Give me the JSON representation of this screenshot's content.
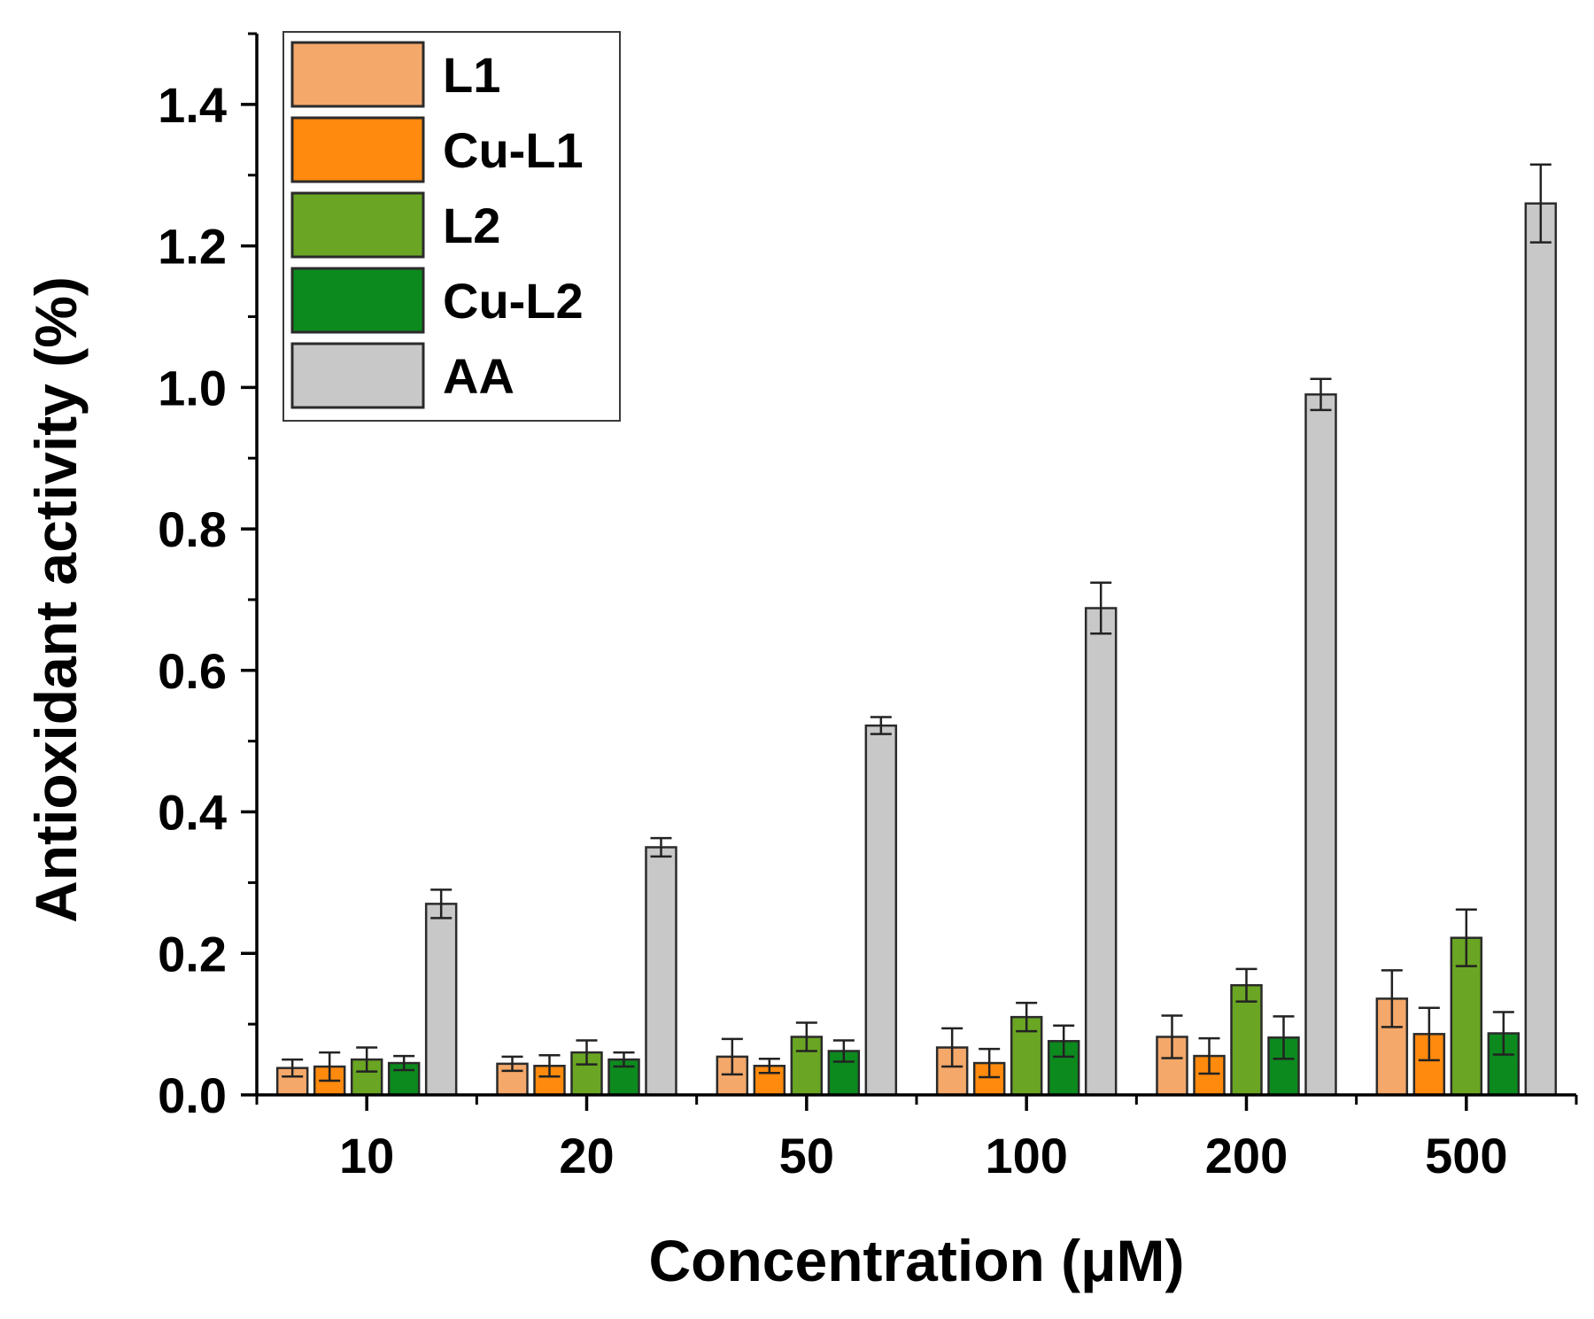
{
  "chart_data": {
    "type": "bar",
    "title": "",
    "xlabel": "Concentration (μM)",
    "ylabel": "Antioxidant activity (%)",
    "ylim": [
      0.0,
      1.5
    ],
    "yticks": [
      0.0,
      0.2,
      0.4,
      0.6,
      0.8,
      1.0,
      1.2,
      1.4
    ],
    "ytick_labels": [
      "0.0",
      "0.2",
      "0.4",
      "0.6",
      "0.8",
      "1.0",
      "1.2",
      "1.4"
    ],
    "categories": [
      "10",
      "20",
      "50",
      "100",
      "200",
      "500"
    ],
    "grid": false,
    "legend_position": "top-left",
    "error_bars": true,
    "series": [
      {
        "name": "L1",
        "color": "#F4A86A",
        "values": [
          0.038,
          0.044,
          0.054,
          0.067,
          0.082,
          0.136
        ],
        "errors": [
          0.012,
          0.01,
          0.025,
          0.027,
          0.03,
          0.04
        ]
      },
      {
        "name": "Cu-L1",
        "color": "#FF8A0D",
        "values": [
          0.04,
          0.041,
          0.041,
          0.045,
          0.055,
          0.086
        ],
        "errors": [
          0.02,
          0.015,
          0.01,
          0.02,
          0.025,
          0.037
        ]
      },
      {
        "name": "L2",
        "color": "#6AA623",
        "values": [
          0.05,
          0.06,
          0.082,
          0.11,
          0.155,
          0.222
        ],
        "errors": [
          0.017,
          0.017,
          0.02,
          0.02,
          0.023,
          0.04
        ]
      },
      {
        "name": "Cu-L2",
        "color": "#0C8A1E",
        "values": [
          0.045,
          0.05,
          0.062,
          0.076,
          0.081,
          0.087
        ],
        "errors": [
          0.01,
          0.01,
          0.015,
          0.022,
          0.03,
          0.03
        ]
      },
      {
        "name": "AA",
        "color": "#C8C8C8",
        "values": [
          0.27,
          0.35,
          0.522,
          0.688,
          0.99,
          1.26
        ],
        "errors": [
          0.02,
          0.013,
          0.012,
          0.036,
          0.022,
          0.055
        ]
      }
    ]
  }
}
